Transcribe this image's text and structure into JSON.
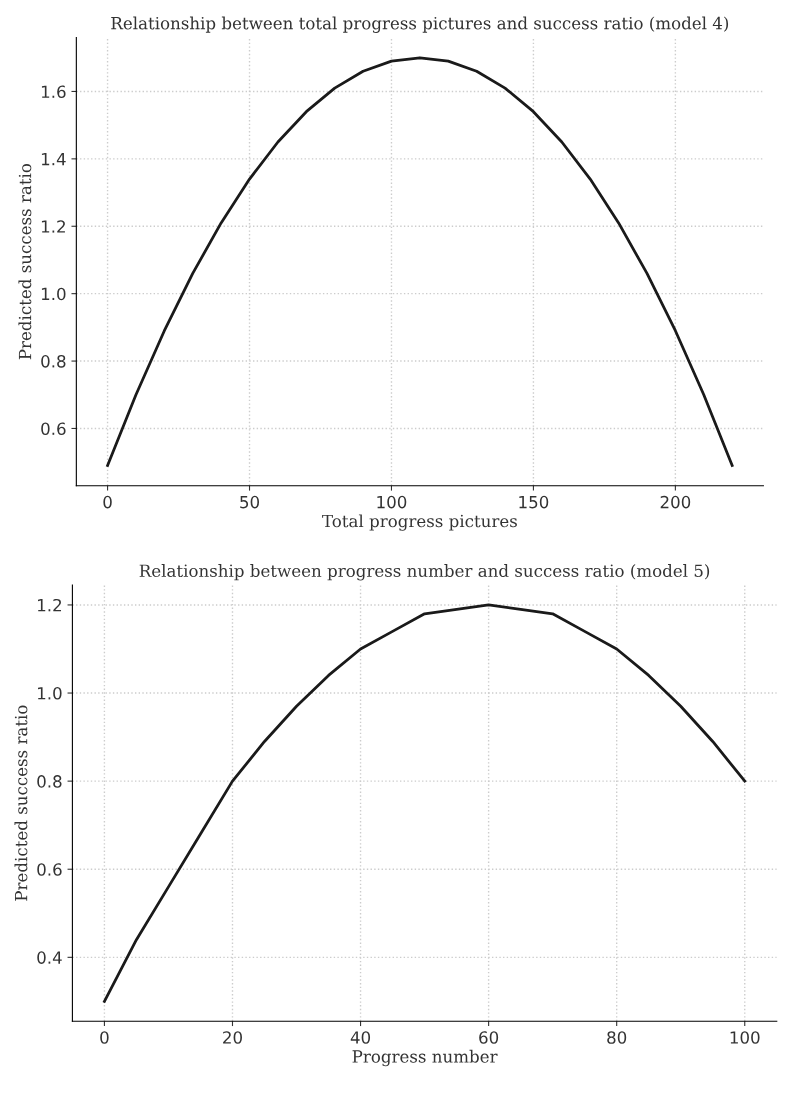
{
  "chart_data": [
    {
      "type": "line",
      "title": "Relationship between total progress pictures and success ratio (model 4)",
      "xlabel": "Total progress pictures",
      "ylabel": "Predicted success ratio",
      "x": [
        0,
        10,
        20,
        30,
        40,
        50,
        60,
        70,
        80,
        90,
        100,
        110,
        120,
        130,
        140,
        150,
        160,
        170,
        180,
        190,
        200,
        210,
        220
      ],
      "series": [
        {
          "color": "#1a1a1a",
          "values": [
            0.49,
            0.7,
            0.89,
            1.06,
            1.21,
            1.34,
            1.45,
            1.54,
            1.61,
            1.66,
            1.69,
            1.7,
            1.69,
            1.66,
            1.61,
            1.54,
            1.45,
            1.34,
            1.21,
            1.06,
            0.89,
            0.7,
            0.49
          ]
        }
      ],
      "xlim": [
        -11,
        231
      ],
      "ylim": [
        0.43,
        1.76
      ],
      "xticks": [
        0,
        50,
        100,
        150,
        200
      ],
      "yticks": [
        0.6,
        0.8,
        {
          "value": 1,
          "label": "1.0"
        },
        1.2,
        1.4,
        1.6
      ],
      "grid": true
    },
    {
      "type": "line",
      "title": "Relationship between progress number and success ratio (model 5)",
      "xlabel": "Progress number",
      "ylabel": "Predicted success ratio",
      "x": [
        0,
        5,
        10,
        15,
        20,
        25,
        30,
        35,
        40,
        45,
        50,
        55,
        60,
        65,
        70,
        75,
        80,
        85,
        90,
        95,
        100
      ],
      "series": [
        {
          "color": "#1a1a1a",
          "values": [
            0.3,
            0.44,
            0.56,
            0.68,
            0.8,
            0.89,
            0.97,
            1.04,
            1.1,
            1.14,
            1.18,
            1.19,
            1.2,
            1.19,
            1.18,
            1.14,
            1.1,
            1.04,
            0.97,
            0.89,
            0.8
          ]
        }
      ],
      "xlim": [
        -5,
        105
      ],
      "ylim": [
        0.255,
        1.245
      ],
      "xticks": [
        0,
        20,
        40,
        60,
        80,
        100
      ],
      "yticks": [
        0.4,
        0.6,
        0.8,
        {
          "value": 1,
          "label": "1.0"
        },
        1.2
      ],
      "grid": true
    }
  ]
}
